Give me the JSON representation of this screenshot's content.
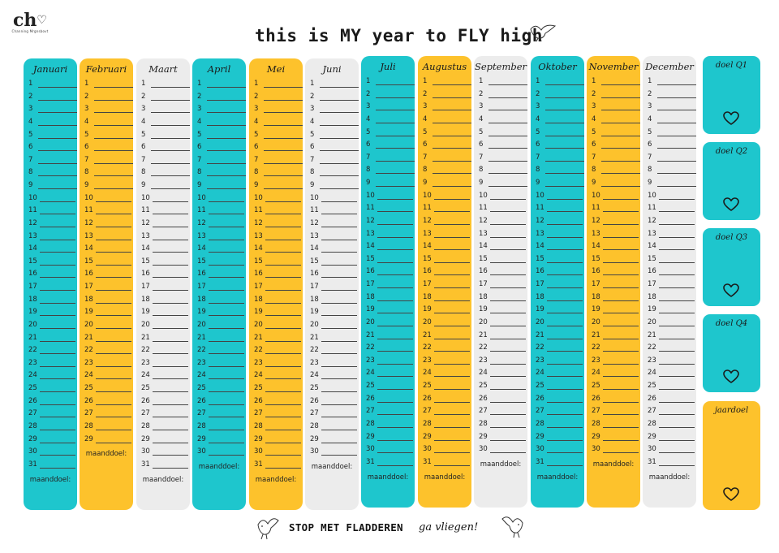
{
  "logo": {
    "mark": "ch",
    "subtitle": "Channing Mrgnsbovt"
  },
  "title": "this is MY year to FLY high",
  "months": [
    {
      "name": "Januari",
      "days": 31,
      "color": "#1ec6cd",
      "goal_label": "maanddoel:"
    },
    {
      "name": "Februari",
      "days": 29,
      "color": "#fdc22c",
      "goal_label": "maanddoel:"
    },
    {
      "name": "Maart",
      "days": 31,
      "color": "#ececec",
      "goal_label": "maanddoel:"
    },
    {
      "name": "April",
      "days": 30,
      "color": "#1ec6cd",
      "goal_label": "maanddoel:"
    },
    {
      "name": "Mei",
      "days": 31,
      "color": "#fdc22c",
      "goal_label": "maanddoel:"
    },
    {
      "name": "Juni",
      "days": 30,
      "color": "#ececec",
      "goal_label": "maanddoel:"
    },
    {
      "name": "Juli",
      "days": 31,
      "color": "#1ec6cd",
      "goal_label": "maanddoel:"
    },
    {
      "name": "Augustus",
      "days": 31,
      "color": "#fdc22c",
      "goal_label": "maanddoel:"
    },
    {
      "name": "September",
      "days": 30,
      "color": "#ececec",
      "goal_label": "maanddoel:"
    },
    {
      "name": "Oktober",
      "days": 31,
      "color": "#1ec6cd",
      "goal_label": "maanddoel:"
    },
    {
      "name": "November",
      "days": 30,
      "color": "#fdc22c",
      "goal_label": "maanddoel:"
    },
    {
      "name": "December",
      "days": 31,
      "color": "#ececec",
      "goal_label": "maanddoel:"
    }
  ],
  "goals": [
    {
      "name": "doel Q1",
      "color": "#1ec6cd",
      "icon": "heart-icon"
    },
    {
      "name": "doel Q2",
      "color": "#1ec6cd",
      "icon": "heart-icon"
    },
    {
      "name": "doel Q3",
      "color": "#1ec6cd",
      "icon": "heart-icon"
    },
    {
      "name": "doel Q4",
      "color": "#1ec6cd",
      "icon": "heart-icon"
    },
    {
      "name": "jaardoel",
      "color": "#fdc22c",
      "icon": "heart-icon"
    }
  ],
  "slogan": {
    "main": "STOP MET FLADDEREN",
    "tail": "ga vliegen!"
  }
}
